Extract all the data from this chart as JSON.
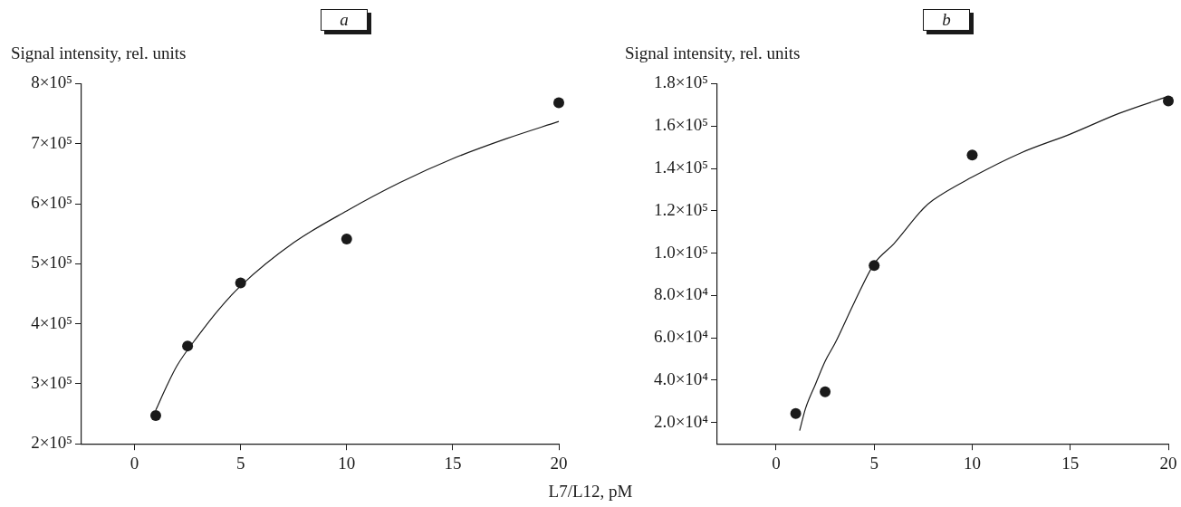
{
  "chart_data": [
    {
      "type": "scatter",
      "title": "a",
      "xlabel": "L7/L12, pM",
      "ylabel": "Signal intensity, rel. units",
      "grid": false,
      "legend": false,
      "xlim": [
        -2.5,
        20
      ],
      "xticks": [
        0,
        5,
        10,
        15,
        20
      ],
      "ylim": [
        200000,
        800000
      ],
      "yticks": [
        {
          "value": 200000,
          "label": "2×10⁵"
        },
        {
          "value": 300000,
          "label": "3×10⁵"
        },
        {
          "value": 400000,
          "label": "4×10⁵"
        },
        {
          "value": 500000,
          "label": "5×10⁵"
        },
        {
          "value": 600000,
          "label": "6×10⁵"
        },
        {
          "value": 700000,
          "label": "7×10⁵"
        },
        {
          "value": 800000,
          "label": "8×10⁵"
        }
      ],
      "series": [
        {
          "type": "scatter",
          "marker": "circle",
          "color": "#1a1a1a",
          "x": [
            1,
            2.5,
            5,
            10,
            20
          ],
          "values": [
            247000,
            363000,
            468000,
            541000,
            768000
          ]
        },
        {
          "type": "line",
          "marker": "none",
          "line_style": "solid",
          "color": "#1a1a1a",
          "x": [
            1,
            1.5,
            2,
            3,
            4,
            5,
            7.5,
            10,
            12.5,
            15,
            17.5,
            20
          ],
          "values": [
            256000,
            295000,
            330000,
            380000,
            425000,
            463000,
            535000,
            588000,
            635000,
            675000,
            708000,
            737000
          ]
        }
      ]
    },
    {
      "type": "scatter",
      "title": "b",
      "ylabel": "Signal intensity, rel. units",
      "grid": false,
      "legend": false,
      "xlim": [
        -3,
        20
      ],
      "xticks": [
        0,
        5,
        10,
        15,
        20
      ],
      "ylim": [
        10000,
        180000
      ],
      "yticks": [
        {
          "value": 20000,
          "label": "2.0×10⁴"
        },
        {
          "value": 40000,
          "label": "4.0×10⁴"
        },
        {
          "value": 60000,
          "label": "6.0×10⁴"
        },
        {
          "value": 80000,
          "label": "8.0×10⁴"
        },
        {
          "value": 100000,
          "label": "1.0×10⁵"
        },
        {
          "value": 120000,
          "label": "1.2×10⁵"
        },
        {
          "value": 140000,
          "label": "1.4×10⁵"
        },
        {
          "value": 160000,
          "label": "1.6×10⁵"
        },
        {
          "value": 180000,
          "label": "1.8×10⁵"
        }
      ],
      "series": [
        {
          "type": "scatter",
          "marker": "circle",
          "color": "#1a1a1a",
          "x": [
            1,
            2.5,
            5,
            10,
            20
          ],
          "values": [
            24300,
            34600,
            94200,
            146300,
            171800
          ]
        },
        {
          "type": "line",
          "marker": "none",
          "line_style": "solid",
          "color": "#1a1a1a",
          "x": [
            1.2,
            1.5,
            2,
            2.5,
            3,
            4,
            5,
            6,
            7.5,
            8,
            10,
            12.5,
            15,
            17.5,
            20
          ],
          "values": [
            16200,
            26700,
            38000,
            49000,
            57400,
            77000,
            95000,
            104400,
            121000,
            125000,
            135900,
            147400,
            156200,
            166000,
            174000
          ]
        }
      ]
    }
  ]
}
